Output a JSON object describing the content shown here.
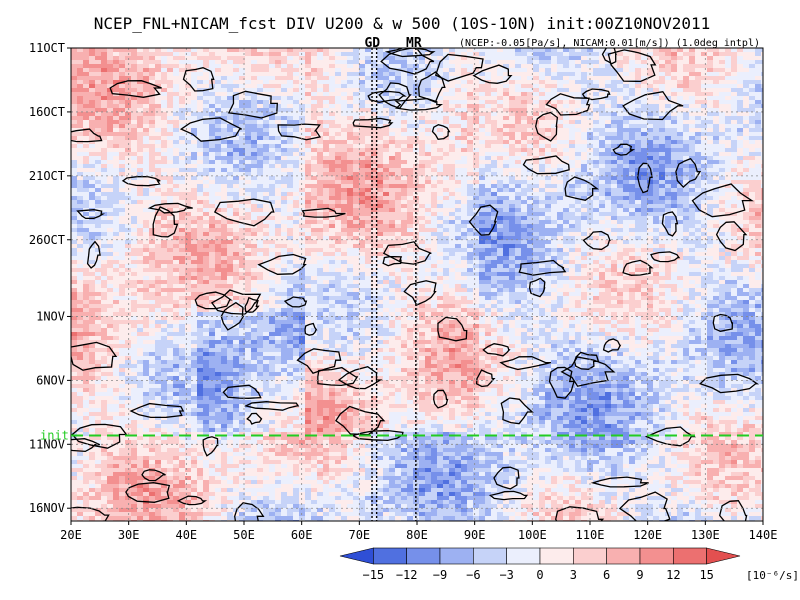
{
  "chart_data": {
    "type": "heatmap",
    "title": "NCEP_FNL+NICAM_fcst DIV U200 & w 500 (10S-10N) init:00Z10NOV2011",
    "subtitle": "(NCEP:-0.05[Pa/s], NICAM:0.01[m/s]) (1.0deg intpl)",
    "x_axis": {
      "range": [
        20,
        140
      ],
      "ticks": [
        20,
        30,
        40,
        50,
        60,
        70,
        80,
        90,
        100,
        110,
        120,
        130,
        140
      ],
      "tick_labels": [
        "20E",
        "30E",
        "40E",
        "50E",
        "60E",
        "70E",
        "80E",
        "90E",
        "100E",
        "110E",
        "120E",
        "130E",
        "140E"
      ]
    },
    "y_axis": {
      "range": [
        "2011-10-11",
        "2011-11-17"
      ],
      "ticks": [
        "2011-10-11",
        "2011-10-16",
        "2011-10-21",
        "2011-10-26",
        "2011-11-01",
        "2011-11-06",
        "2011-11-11",
        "2011-11-16"
      ],
      "tick_labels": [
        "11OCT",
        "16OCT",
        "21OCT",
        "26OCT",
        "1NOV",
        "6NOV",
        "11NOV",
        "16NOV"
      ],
      "direction": "top-to-bottom"
    },
    "init_line": {
      "label": "init",
      "date": "2011-11-10",
      "color": "#22cc22"
    },
    "markers": [
      {
        "label": "GD",
        "lons": [
          72.2,
          73.0
        ],
        "color": "#dd2222"
      },
      {
        "label": "MR",
        "lons": [
          79.8
        ],
        "color": "#dd2222"
      }
    ],
    "colorbar": {
      "levels": [
        -15,
        -12,
        -9,
        -6,
        -3,
        0,
        3,
        6,
        9,
        12,
        15
      ],
      "tick_labels": [
        "−15",
        "−12",
        "−9",
        "−6",
        "−3",
        "0",
        "3",
        "6",
        "9",
        "12",
        "15"
      ],
      "unit": "[10⁻⁶/s]",
      "colors": [
        "#2f4fd6",
        "#5070e0",
        "#7690ea",
        "#9db1f2",
        "#c6d3f8",
        "#ebeffd",
        "#fdecec",
        "#fbcfcf",
        "#f8b0b0",
        "#f39090",
        "#ec7070",
        "#e35050"
      ],
      "extend": "both"
    },
    "grid": true
  }
}
